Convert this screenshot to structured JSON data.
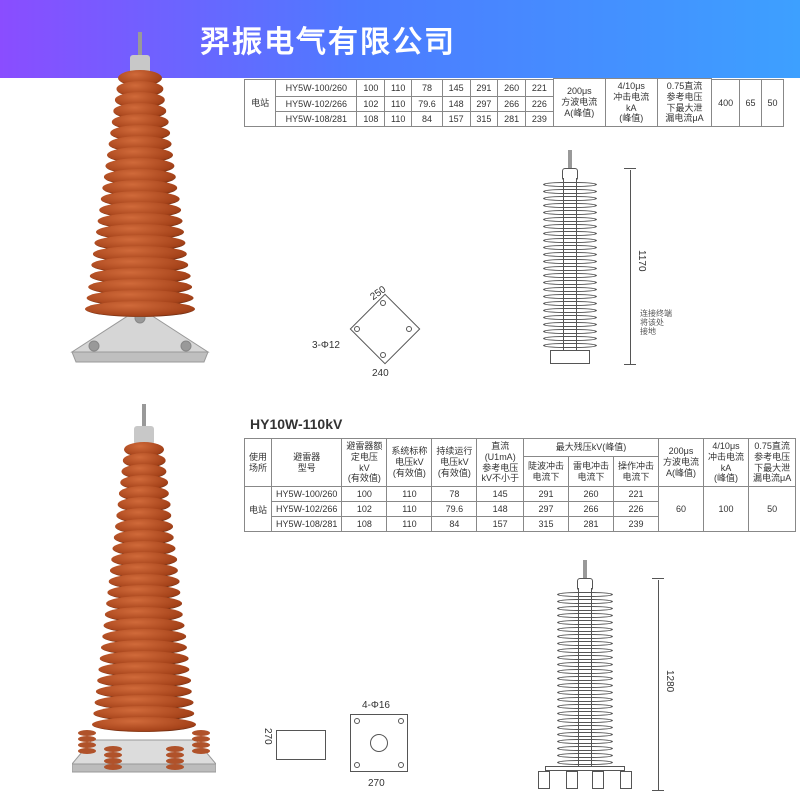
{
  "header": {
    "title": "羿振电气有限公司"
  },
  "colors": {
    "header_grad_start": "#8a4dff",
    "header_grad_mid": "#4d7bff",
    "header_grad_end": "#3da0ff",
    "arrester_body": "#b0522a",
    "arrester_hl": "#d06a3a",
    "diagram_line": "#555555",
    "table_border": "#888888",
    "text": "#333333",
    "bg": "#ffffff"
  },
  "section1": {
    "table": {
      "side_label": "电站",
      "right_cols": [
        "400",
        "65",
        "50"
      ],
      "right_headers": [
        "200μs\n方波电流\nA(峰值)",
        "4/10μs\n冲击电流\nkA\n(峰值)",
        "0.75直流\n参考电压\n下最大泄\n漏电流μA"
      ],
      "rows": [
        {
          "model": "HY5W-100/260",
          "v1": "100",
          "v2": "110",
          "v3": "78",
          "v4": "145",
          "v5": "291",
          "v6": "260",
          "v7": "221"
        },
        {
          "model": "HY5W-102/266",
          "v1": "102",
          "v2": "110",
          "v3": "79.6",
          "v4": "148",
          "v5": "297",
          "v6": "266",
          "v7": "226"
        },
        {
          "model": "HY5W-108/281",
          "v1": "108",
          "v2": "110",
          "v3": "84",
          "v4": "157",
          "v5": "315",
          "v6": "281",
          "v7": "239"
        }
      ]
    },
    "diagram": {
      "height_label": "1170",
      "base_w": "240",
      "base_diag": "250",
      "hole": "3-Φ12",
      "note": "连接终端\n将该处\n接地"
    }
  },
  "section2": {
    "title": "HY10W-110kV",
    "table": {
      "headers": {
        "c1": "使用\n场所",
        "c2": "避雷器额\n定电压\nkV\n(有效值)",
        "c3": "避雷器\n型号",
        "c4": "系统标称\n电压kV\n(有效值)",
        "c5": "持续运行\n电压kV\n(有效值)",
        "c6": "直流\n(U1mA)\n参考电压\nkV不小于",
        "g_max": "最大残压kV(峰值)",
        "g1": "陡波冲击\n电流下",
        "g2": "雷电冲击\n电流下",
        "g3": "操作冲击\n电流下",
        "r1": "200μs\n方波电流\nA(峰值)",
        "r2": "4/10μs\n冲击电流\nkA\n(峰值)",
        "r3": "0.75直流\n参考电压\n下最大泄\n漏电流μA"
      },
      "side_label": "电站",
      "right_cols": [
        "60",
        "100",
        "50"
      ],
      "rows": [
        {
          "model": "HY5W-100/260",
          "v1": "100",
          "v2": "110",
          "v3": "78",
          "v4": "145",
          "v5": "291",
          "v6": "260",
          "v7": "221"
        },
        {
          "model": "HY5W-102/266",
          "v1": "102",
          "v2": "110",
          "v3": "79.6",
          "v4": "148",
          "v5": "297",
          "v6": "266",
          "v7": "226"
        },
        {
          "model": "HY5W-108/281",
          "v1": "108",
          "v2": "110",
          "v3": "84",
          "v4": "157",
          "v5": "315",
          "v6": "281",
          "v7": "239"
        }
      ]
    },
    "diagram": {
      "height_label": "1280",
      "base_h_label": "270",
      "base_w_label": "270",
      "hole": "4-Φ16"
    }
  }
}
